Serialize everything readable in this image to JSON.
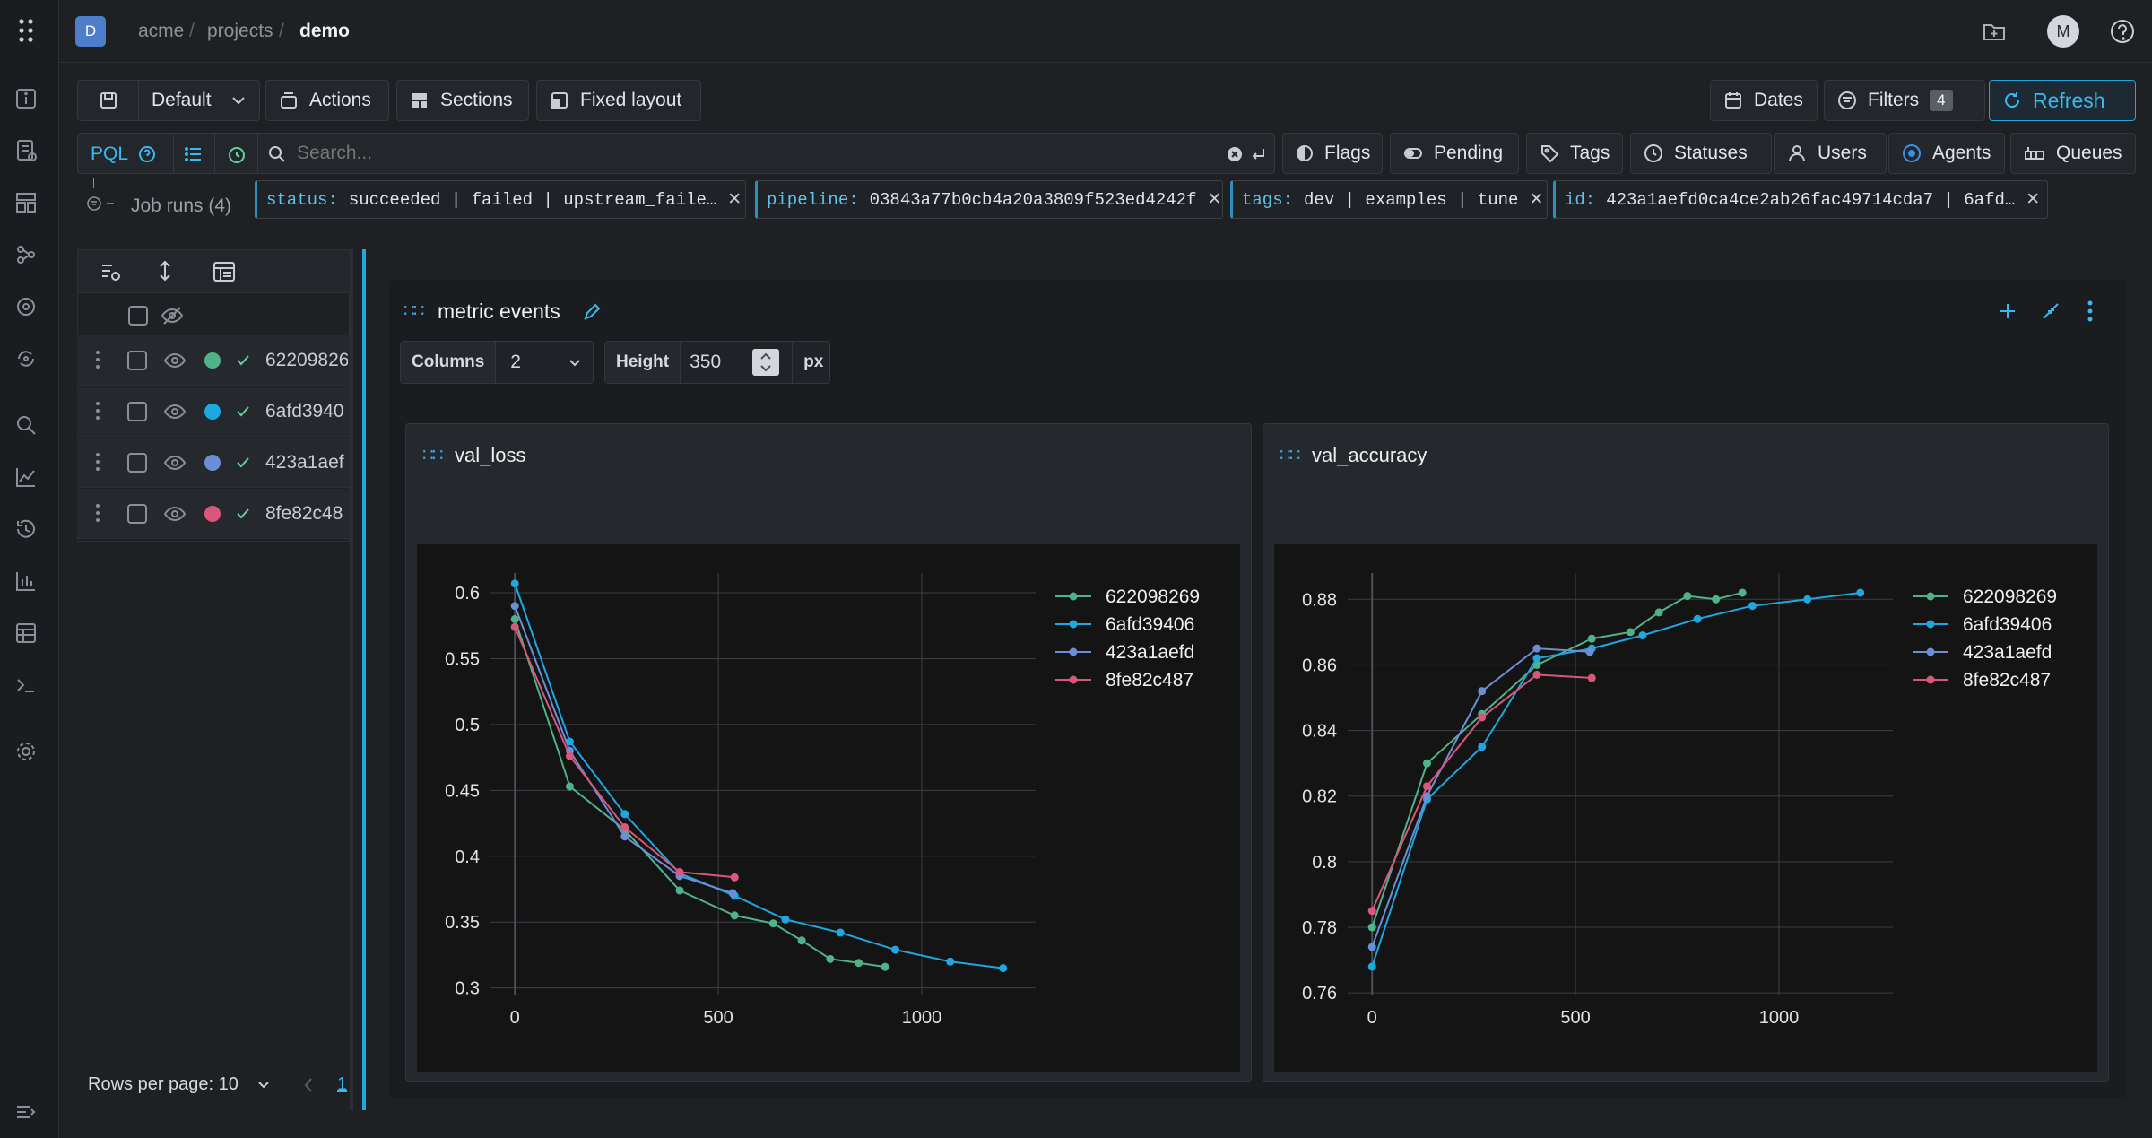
{
  "app": {
    "avatar_letter": "D",
    "user_initial": "M"
  },
  "breadcrumb": [
    "acme",
    "projects",
    "demo"
  ],
  "toolbar": {
    "preset": "Default",
    "actions": "Actions",
    "sections": "Sections",
    "fixed_layout": "Fixed layout",
    "dates": "Dates",
    "filters": "Filters",
    "filters_count": "4",
    "refresh": "Refresh"
  },
  "search": {
    "mode": "PQL",
    "placeholder": "Search...",
    "tabs": [
      "Flags",
      "Pending",
      "Tags",
      "Statuses",
      "Users",
      "Agents",
      "Queues"
    ]
  },
  "filters": [
    {
      "key": "status:",
      "value": "succeeded | failed | upstream_faile…"
    },
    {
      "key": "pipeline:",
      "value": "03843a77b0cb4a20a3809f523ed4242f"
    },
    {
      "key": "tags:",
      "value": "dev | examples | tune"
    },
    {
      "key": "id:",
      "value": "423a1aefd0ca4ce2ab26fac49714cda7 | 6afd…"
    }
  ],
  "runs": {
    "title": "Job runs (4)",
    "items": [
      {
        "name": "62209826",
        "color": "#4fb38a"
      },
      {
        "name": "6afd3940",
        "color": "#1ea7e0"
      },
      {
        "name": "423a1aef",
        "color": "#6b8fd6"
      },
      {
        "name": "8fe82c48",
        "color": "#d9577a"
      }
    ],
    "rows_per_page": "Rows per page: 10",
    "page": "1"
  },
  "section": {
    "title": "metric events",
    "columns_label": "Columns",
    "columns_value": "2",
    "height_label": "Height",
    "height_value": "350",
    "height_unit": "px"
  },
  "chart_data": [
    {
      "type": "line",
      "title": "val_loss",
      "xlim": [
        -60,
        1280
      ],
      "ylim": [
        0.295,
        0.615
      ],
      "xticks": [
        0,
        500,
        1000
      ],
      "yticks": [
        0.3,
        0.35,
        0.4,
        0.45,
        0.5,
        0.55,
        0.6
      ],
      "grid": true,
      "legend": "top-right",
      "series": [
        {
          "name": "622098269",
          "color": "#4fb38a",
          "x": [
            0,
            135,
            270,
            405,
            540,
            635,
            705,
            775,
            845,
            910
          ],
          "y": [
            0.58,
            0.453,
            0.42,
            0.374,
            0.355,
            0.349,
            0.336,
            0.322,
            0.319,
            0.316
          ]
        },
        {
          "name": "6afd39406",
          "color": "#1ea7e0",
          "x": [
            0,
            135,
            270,
            405,
            540,
            665,
            800,
            935,
            1070,
            1200
          ],
          "y": [
            0.607,
            0.487,
            0.432,
            0.387,
            0.37,
            0.352,
            0.342,
            0.329,
            0.32,
            0.315
          ]
        },
        {
          "name": "423a1aefd",
          "color": "#6b8fd6",
          "x": [
            0,
            135,
            270,
            405,
            535
          ],
          "y": [
            0.59,
            0.48,
            0.415,
            0.385,
            0.372
          ]
        },
        {
          "name": "8fe82c487",
          "color": "#d9577a",
          "x": [
            0,
            135,
            270,
            405,
            540
          ],
          "y": [
            0.574,
            0.476,
            0.422,
            0.388,
            0.384
          ]
        }
      ]
    },
    {
      "type": "line",
      "title": "val_accuracy",
      "xlim": [
        -60,
        1280
      ],
      "ylim": [
        0.7595,
        0.888
      ],
      "xticks": [
        0,
        500,
        1000
      ],
      "yticks": [
        0.76,
        0.78,
        0.8,
        0.82,
        0.84,
        0.86,
        0.88
      ],
      "grid": true,
      "legend": "top-right",
      "series": [
        {
          "name": "622098269",
          "color": "#4fb38a",
          "x": [
            0,
            135,
            270,
            405,
            540,
            635,
            705,
            775,
            845,
            910
          ],
          "y": [
            0.78,
            0.83,
            0.845,
            0.86,
            0.868,
            0.87,
            0.876,
            0.881,
            0.88,
            0.882
          ]
        },
        {
          "name": "6afd39406",
          "color": "#1ea7e0",
          "x": [
            0,
            135,
            270,
            405,
            540,
            665,
            800,
            935,
            1070,
            1200
          ],
          "y": [
            0.768,
            0.819,
            0.835,
            0.862,
            0.865,
            0.869,
            0.874,
            0.878,
            0.88,
            0.882
          ]
        },
        {
          "name": "423a1aefd",
          "color": "#6b8fd6",
          "x": [
            0,
            135,
            270,
            405,
            535
          ],
          "y": [
            0.774,
            0.82,
            0.852,
            0.865,
            0.864
          ]
        },
        {
          "name": "8fe82c487",
          "color": "#d9577a",
          "x": [
            0,
            135,
            270,
            405,
            540
          ],
          "y": [
            0.785,
            0.823,
            0.844,
            0.857,
            0.856
          ]
        }
      ]
    }
  ]
}
